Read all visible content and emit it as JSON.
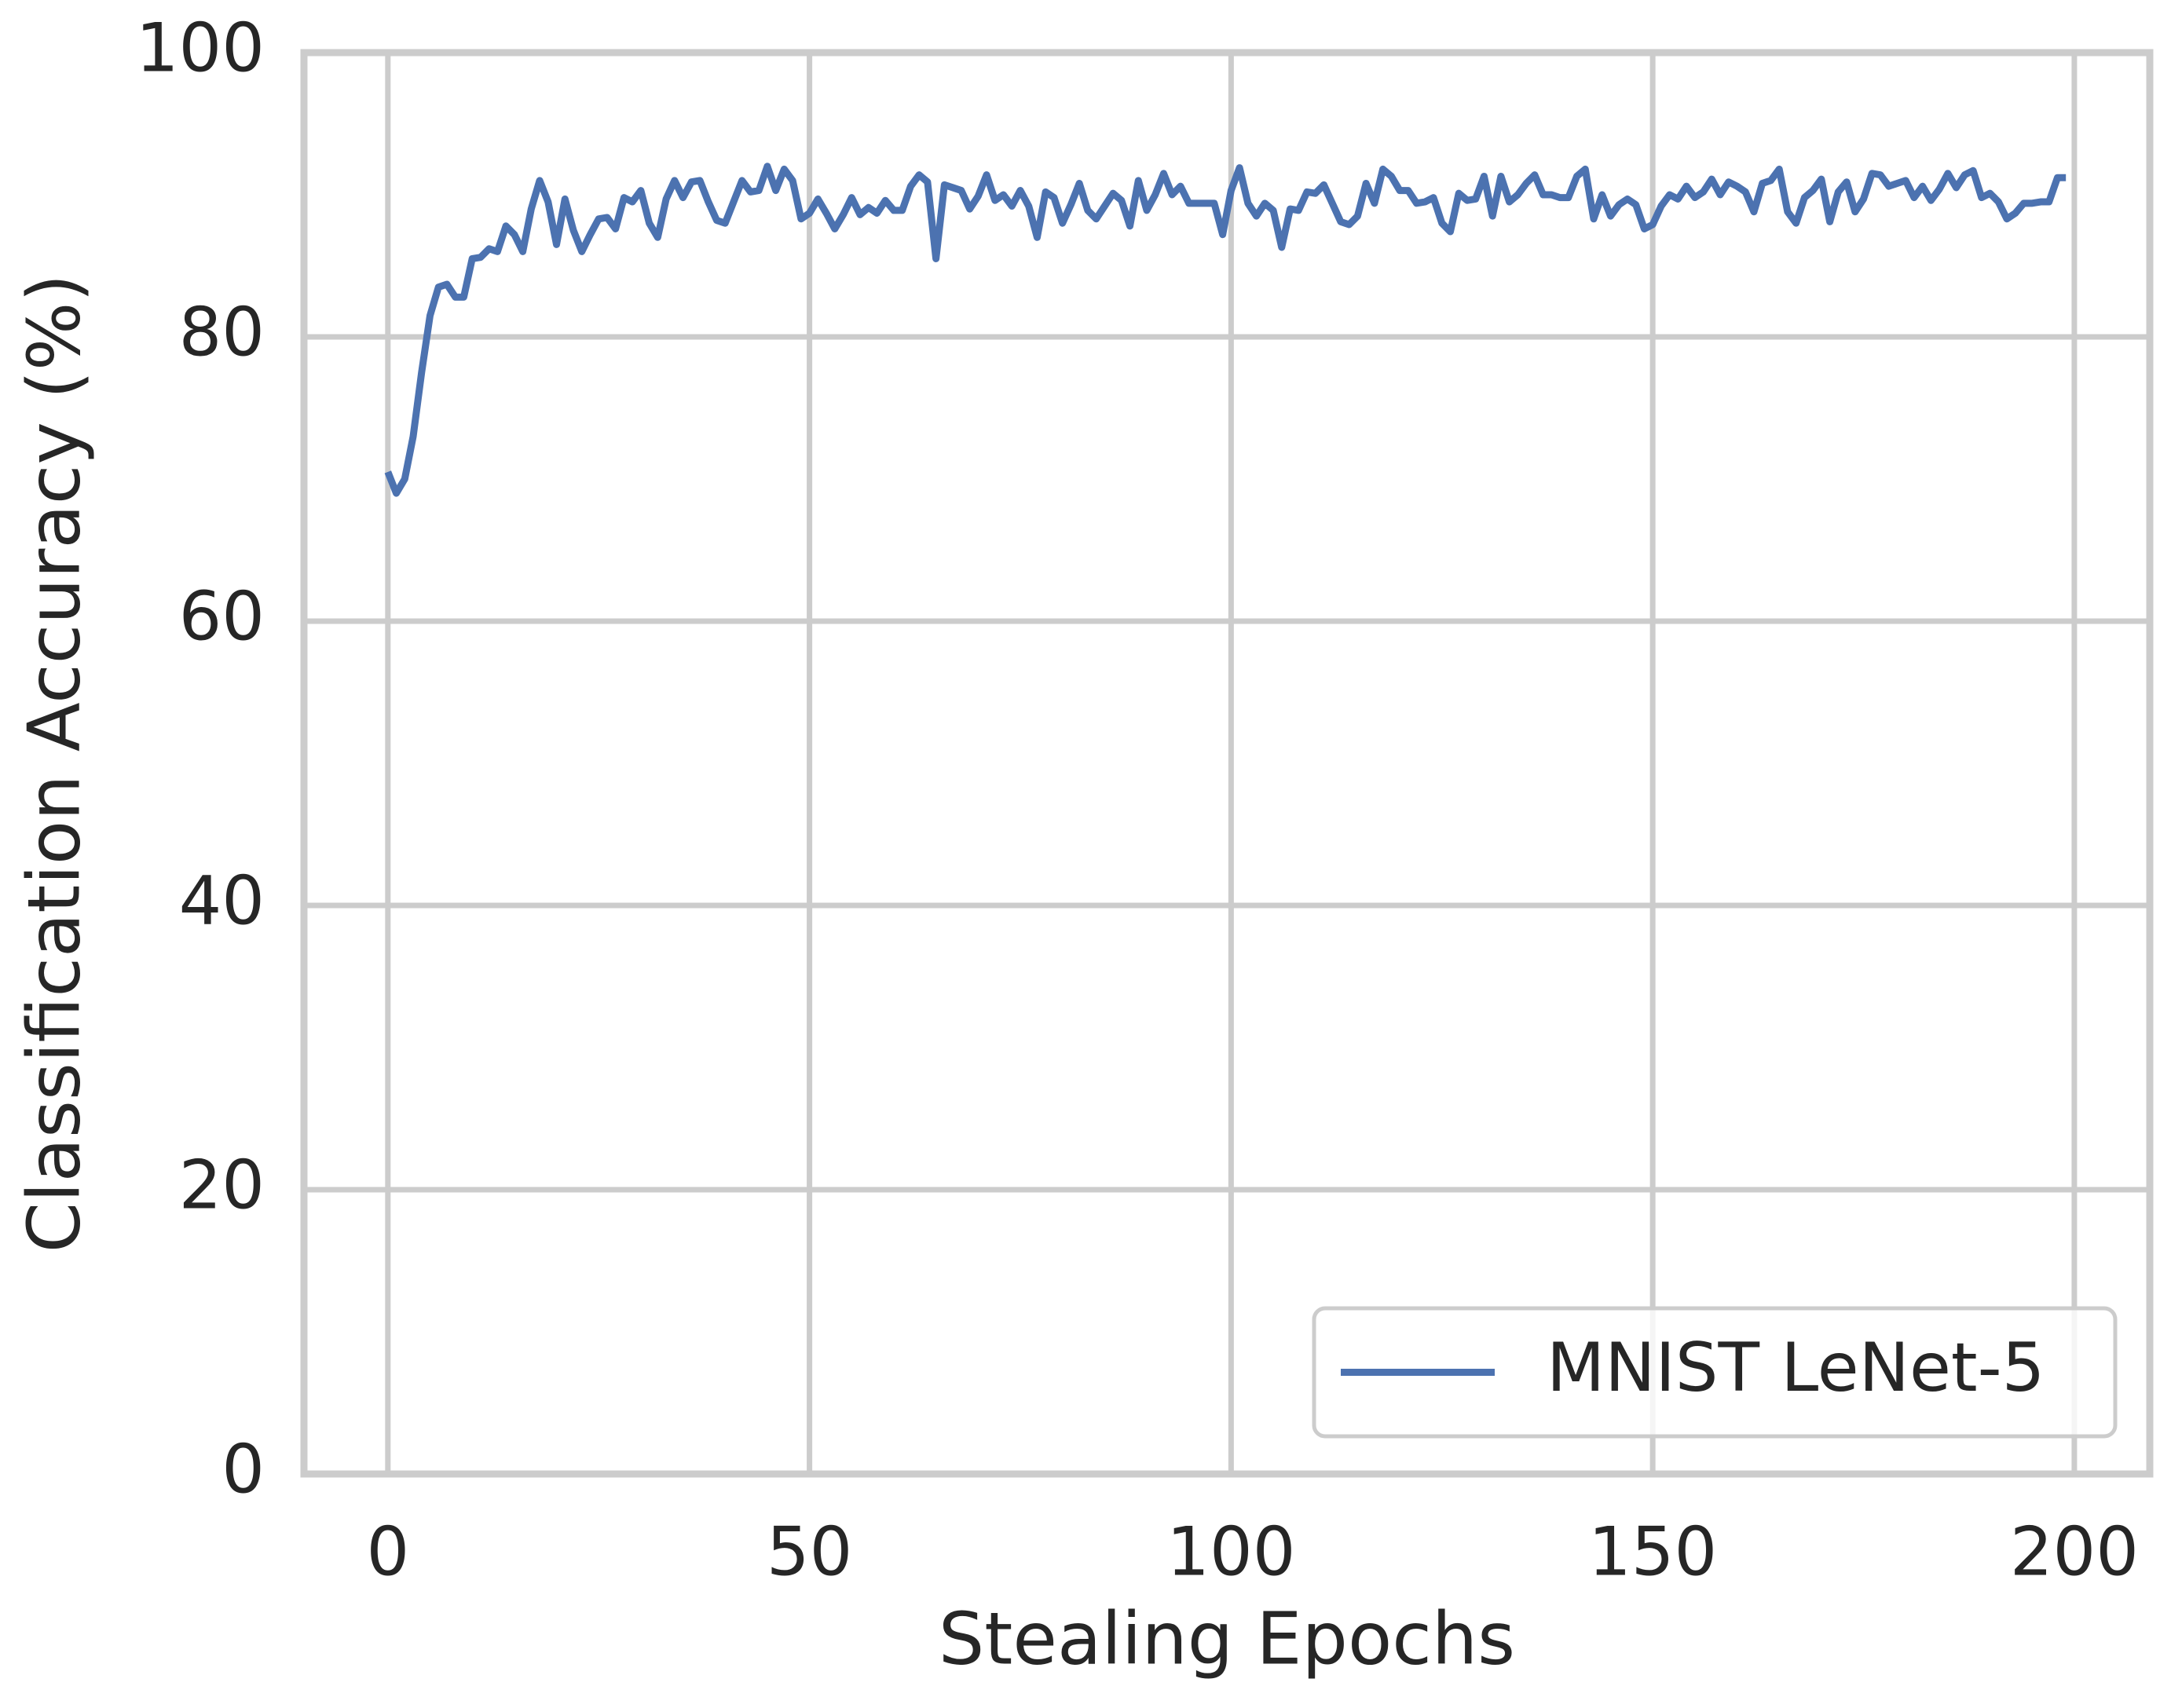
{
  "chart_data": {
    "type": "line",
    "x_label": "Stealing Epochs",
    "y_label": "Classification Accuracy (%)",
    "x": [
      0,
      1,
      2,
      3,
      4,
      5,
      6,
      7,
      8,
      9,
      10,
      11,
      12,
      13,
      14,
      15,
      16,
      17,
      18,
      19,
      20,
      21,
      22,
      23,
      24,
      25,
      26,
      27,
      28,
      29,
      30,
      31,
      32,
      33,
      34,
      35,
      36,
      37,
      38,
      39,
      40,
      41,
      42,
      43,
      44,
      45,
      46,
      47,
      48,
      49,
      50,
      51,
      52,
      53,
      54,
      55,
      56,
      57,
      58,
      59,
      60,
      61,
      62,
      63,
      64,
      65,
      66,
      67,
      68,
      69,
      70,
      71,
      72,
      73,
      74,
      75,
      76,
      77,
      78,
      79,
      80,
      81,
      82,
      83,
      84,
      85,
      86,
      87,
      88,
      89,
      90,
      91,
      92,
      93,
      94,
      95,
      96,
      97,
      98,
      99,
      100,
      101,
      102,
      103,
      104,
      105,
      106,
      107,
      108,
      109,
      110,
      111,
      112,
      113,
      114,
      115,
      116,
      117,
      118,
      119,
      120,
      121,
      122,
      123,
      124,
      125,
      126,
      127,
      128,
      129,
      130,
      131,
      132,
      133,
      134,
      135,
      136,
      137,
      138,
      139,
      140,
      141,
      142,
      143,
      144,
      145,
      146,
      147,
      148,
      149,
      150,
      151,
      152,
      153,
      154,
      155,
      156,
      157,
      158,
      159,
      160,
      161,
      162,
      163,
      164,
      165,
      166,
      167,
      168,
      169,
      170,
      171,
      172,
      173,
      174,
      175,
      176,
      177,
      178,
      179,
      180,
      181,
      182,
      183,
      184,
      185,
      186,
      187,
      188,
      189,
      190,
      191,
      192,
      193,
      194,
      195,
      196,
      197,
      198,
      199
    ],
    "series": [
      {
        "name": "MNIST LeNet-5",
        "color": "#4c72b0",
        "values": [
          70.5,
          69,
          70,
          73,
          77.5,
          81.5,
          83.5,
          83.7,
          82.8,
          82.8,
          85.5,
          85.6,
          86.2,
          86,
          87.8,
          87.2,
          86,
          89,
          91,
          89.5,
          86.5,
          89.7,
          87.5,
          86,
          87.2,
          88.3,
          88.4,
          87.6,
          89.8,
          89.5,
          90.3,
          88,
          87,
          89.7,
          91,
          89.8,
          90.9,
          91,
          89.5,
          88.2,
          88,
          89.5,
          91,
          90.2,
          90.3,
          92,
          90.3,
          91.8,
          91,
          88.3,
          88.7,
          89.7,
          88.7,
          87.6,
          88.6,
          89.8,
          88.6,
          89.1,
          88.7,
          89.6,
          88.9,
          88.9,
          90.6,
          91.4,
          90.9,
          85.5,
          90.7,
          90.5,
          90.3,
          89,
          89.9,
          91.4,
          89.6,
          90,
          89.2,
          90.3,
          89.2,
          87,
          90.2,
          89.8,
          88,
          89.3,
          90.8,
          88.9,
          88.3,
          89.2,
          90.1,
          89.6,
          87.8,
          91,
          88.9,
          90,
          91.5,
          90,
          90.6,
          89.4,
          89.4,
          89.4,
          89.4,
          87.2,
          90.3,
          91.9,
          89.4,
          88.5,
          89.4,
          88.9,
          86.3,
          89,
          88.9,
          90.2,
          90.1,
          90.7,
          89.4,
          88.1,
          87.9,
          88.5,
          90.8,
          89.4,
          91.8,
          91.3,
          90.3,
          90.3,
          89.4,
          89.5,
          89.8,
          88,
          87.4,
          90.1,
          89.6,
          89.7,
          91.3,
          88.5,
          91.3,
          89.5,
          90,
          90.8,
          91.4,
          90,
          90,
          89.8,
          89.8,
          91.3,
          91.8,
          88.3,
          90,
          88.5,
          89.3,
          89.7,
          89.3,
          87.6,
          87.9,
          89.2,
          90,
          89.7,
          90.6,
          89.8,
          90.2,
          91.1,
          90,
          90.9,
          90.6,
          90.2,
          88.8,
          90.8,
          91,
          91.8,
          88.8,
          88,
          89.8,
          90.3,
          91.1,
          88.1,
          90.2,
          90.9,
          88.8,
          89.7,
          91.5,
          91.4,
          90.6,
          90.8,
          91,
          89.8,
          90.6,
          89.6,
          90.4,
          91.5,
          90.5,
          91.4,
          91.7,
          89.8,
          90.1,
          89.5,
          88.3,
          88.7,
          89.4,
          89.4,
          89.5,
          89.5,
          91.2,
          91.2
        ]
      }
    ],
    "xlim": [
      -9.95,
      208.95
    ],
    "ylim": [
      0,
      100
    ],
    "xticks": [
      0,
      50,
      100,
      150,
      200
    ],
    "yticks": [
      0,
      20,
      40,
      60,
      80,
      100
    ],
    "grid": true,
    "legend": "lower right"
  }
}
